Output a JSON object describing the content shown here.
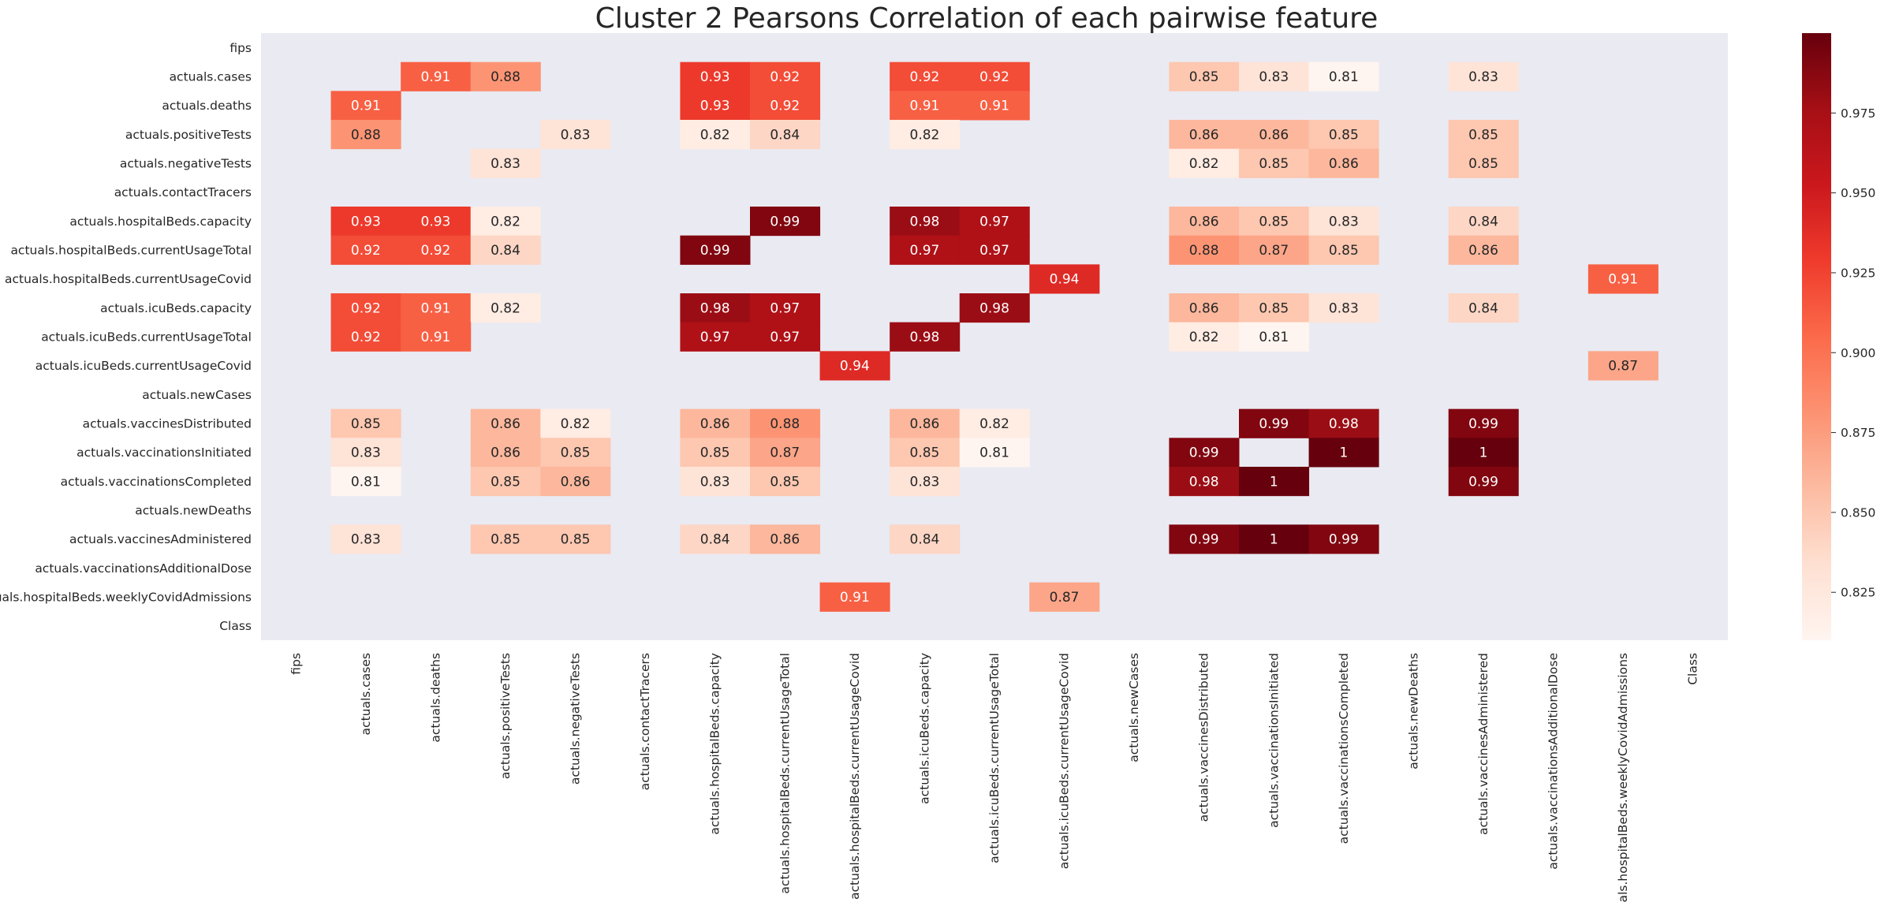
{
  "chart_data": {
    "type": "heatmap",
    "title": "Cluster 2 Pearsons Correlation of each pairwise feature",
    "xlabel": "",
    "ylabel": "",
    "features": [
      "fips",
      "actuals.cases",
      "actuals.deaths",
      "actuals.positiveTests",
      "actuals.negativeTests",
      "actuals.contactTracers",
      "actuals.hospitalBeds.capacity",
      "actuals.hospitalBeds.currentUsageTotal",
      "actuals.hospitalBeds.currentUsageCovid",
      "actuals.icuBeds.capacity",
      "actuals.icuBeds.currentUsageTotal",
      "actuals.icuBeds.currentUsageCovid",
      "actuals.newCases",
      "actuals.vaccinesDistributed",
      "actuals.vaccinationsInitiated",
      "actuals.vaccinationsCompleted",
      "actuals.newDeaths",
      "actuals.vaccinesAdministered",
      "actuals.vaccinationsAdditionalDose",
      "actuals.hospitalBeds.weeklyCovidAdmissions",
      "Class"
    ],
    "cells": [
      {
        "row": 1,
        "col": 2,
        "label": "0.91",
        "value": 0.91
      },
      {
        "row": 1,
        "col": 3,
        "label": "0.88",
        "value": 0.88
      },
      {
        "row": 1,
        "col": 6,
        "label": "0.93",
        "value": 0.93
      },
      {
        "row": 1,
        "col": 7,
        "label": "0.92",
        "value": 0.92
      },
      {
        "row": 1,
        "col": 9,
        "label": "0.92",
        "value": 0.92
      },
      {
        "row": 1,
        "col": 10,
        "label": "0.92",
        "value": 0.92
      },
      {
        "row": 1,
        "col": 13,
        "label": "0.85",
        "value": 0.85
      },
      {
        "row": 1,
        "col": 14,
        "label": "0.83",
        "value": 0.83
      },
      {
        "row": 1,
        "col": 15,
        "label": "0.81",
        "value": 0.81
      },
      {
        "row": 1,
        "col": 17,
        "label": "0.83",
        "value": 0.83
      },
      {
        "row": 2,
        "col": 1,
        "label": "0.91",
        "value": 0.91
      },
      {
        "row": 2,
        "col": 6,
        "label": "0.93",
        "value": 0.93
      },
      {
        "row": 2,
        "col": 7,
        "label": "0.92",
        "value": 0.92
      },
      {
        "row": 2,
        "col": 9,
        "label": "0.91",
        "value": 0.91
      },
      {
        "row": 2,
        "col": 10,
        "label": "0.91",
        "value": 0.91
      },
      {
        "row": 3,
        "col": 1,
        "label": "0.88",
        "value": 0.88
      },
      {
        "row": 3,
        "col": 4,
        "label": "0.83",
        "value": 0.83
      },
      {
        "row": 3,
        "col": 6,
        "label": "0.82",
        "value": 0.82
      },
      {
        "row": 3,
        "col": 7,
        "label": "0.84",
        "value": 0.84
      },
      {
        "row": 3,
        "col": 9,
        "label": "0.82",
        "value": 0.82
      },
      {
        "row": 3,
        "col": 13,
        "label": "0.86",
        "value": 0.86
      },
      {
        "row": 3,
        "col": 14,
        "label": "0.86",
        "value": 0.86
      },
      {
        "row": 3,
        "col": 15,
        "label": "0.85",
        "value": 0.85
      },
      {
        "row": 3,
        "col": 17,
        "label": "0.85",
        "value": 0.85
      },
      {
        "row": 4,
        "col": 3,
        "label": "0.83",
        "value": 0.83
      },
      {
        "row": 4,
        "col": 13,
        "label": "0.82",
        "value": 0.82
      },
      {
        "row": 4,
        "col": 14,
        "label": "0.85",
        "value": 0.85
      },
      {
        "row": 4,
        "col": 15,
        "label": "0.86",
        "value": 0.86
      },
      {
        "row": 4,
        "col": 17,
        "label": "0.85",
        "value": 0.85
      },
      {
        "row": 6,
        "col": 1,
        "label": "0.93",
        "value": 0.93
      },
      {
        "row": 6,
        "col": 2,
        "label": "0.93",
        "value": 0.93
      },
      {
        "row": 6,
        "col": 3,
        "label": "0.82",
        "value": 0.82
      },
      {
        "row": 6,
        "col": 7,
        "label": "0.99",
        "value": 0.99
      },
      {
        "row": 6,
        "col": 9,
        "label": "0.98",
        "value": 0.98
      },
      {
        "row": 6,
        "col": 10,
        "label": "0.97",
        "value": 0.97
      },
      {
        "row": 6,
        "col": 13,
        "label": "0.86",
        "value": 0.86
      },
      {
        "row": 6,
        "col": 14,
        "label": "0.85",
        "value": 0.85
      },
      {
        "row": 6,
        "col": 15,
        "label": "0.83",
        "value": 0.83
      },
      {
        "row": 6,
        "col": 17,
        "label": "0.84",
        "value": 0.84
      },
      {
        "row": 7,
        "col": 1,
        "label": "0.92",
        "value": 0.92
      },
      {
        "row": 7,
        "col": 2,
        "label": "0.92",
        "value": 0.92
      },
      {
        "row": 7,
        "col": 3,
        "label": "0.84",
        "value": 0.84
      },
      {
        "row": 7,
        "col": 6,
        "label": "0.99",
        "value": 0.99
      },
      {
        "row": 7,
        "col": 9,
        "label": "0.97",
        "value": 0.97
      },
      {
        "row": 7,
        "col": 10,
        "label": "0.97",
        "value": 0.97
      },
      {
        "row": 7,
        "col": 13,
        "label": "0.88",
        "value": 0.88
      },
      {
        "row": 7,
        "col": 14,
        "label": "0.87",
        "value": 0.87
      },
      {
        "row": 7,
        "col": 15,
        "label": "0.85",
        "value": 0.85
      },
      {
        "row": 7,
        "col": 17,
        "label": "0.86",
        "value": 0.86
      },
      {
        "row": 8,
        "col": 11,
        "label": "0.94",
        "value": 0.94
      },
      {
        "row": 8,
        "col": 19,
        "label": "0.91",
        "value": 0.91
      },
      {
        "row": 9,
        "col": 1,
        "label": "0.92",
        "value": 0.92
      },
      {
        "row": 9,
        "col": 2,
        "label": "0.91",
        "value": 0.91
      },
      {
        "row": 9,
        "col": 3,
        "label": "0.82",
        "value": 0.82
      },
      {
        "row": 9,
        "col": 6,
        "label": "0.98",
        "value": 0.98
      },
      {
        "row": 9,
        "col": 7,
        "label": "0.97",
        "value": 0.97
      },
      {
        "row": 9,
        "col": 10,
        "label": "0.98",
        "value": 0.98
      },
      {
        "row": 9,
        "col": 13,
        "label": "0.86",
        "value": 0.86
      },
      {
        "row": 9,
        "col": 14,
        "label": "0.85",
        "value": 0.85
      },
      {
        "row": 9,
        "col": 15,
        "label": "0.83",
        "value": 0.83
      },
      {
        "row": 9,
        "col": 17,
        "label": "0.84",
        "value": 0.84
      },
      {
        "row": 10,
        "col": 1,
        "label": "0.92",
        "value": 0.92
      },
      {
        "row": 10,
        "col": 2,
        "label": "0.91",
        "value": 0.91
      },
      {
        "row": 10,
        "col": 6,
        "label": "0.97",
        "value": 0.97
      },
      {
        "row": 10,
        "col": 7,
        "label": "0.97",
        "value": 0.97
      },
      {
        "row": 10,
        "col": 9,
        "label": "0.98",
        "value": 0.98
      },
      {
        "row": 10,
        "col": 13,
        "label": "0.82",
        "value": 0.82
      },
      {
        "row": 10,
        "col": 14,
        "label": "0.81",
        "value": 0.81
      },
      {
        "row": 11,
        "col": 8,
        "label": "0.94",
        "value": 0.94
      },
      {
        "row": 11,
        "col": 19,
        "label": "0.87",
        "value": 0.87
      },
      {
        "row": 13,
        "col": 1,
        "label": "0.85",
        "value": 0.85
      },
      {
        "row": 13,
        "col": 3,
        "label": "0.86",
        "value": 0.86
      },
      {
        "row": 13,
        "col": 4,
        "label": "0.82",
        "value": 0.82
      },
      {
        "row": 13,
        "col": 6,
        "label": "0.86",
        "value": 0.86
      },
      {
        "row": 13,
        "col": 7,
        "label": "0.88",
        "value": 0.88
      },
      {
        "row": 13,
        "col": 9,
        "label": "0.86",
        "value": 0.86
      },
      {
        "row": 13,
        "col": 10,
        "label": "0.82",
        "value": 0.82
      },
      {
        "row": 13,
        "col": 14,
        "label": "0.99",
        "value": 0.99
      },
      {
        "row": 13,
        "col": 15,
        "label": "0.98",
        "value": 0.98
      },
      {
        "row": 13,
        "col": 17,
        "label": "0.99",
        "value": 0.99
      },
      {
        "row": 14,
        "col": 1,
        "label": "0.83",
        "value": 0.83
      },
      {
        "row": 14,
        "col": 3,
        "label": "0.86",
        "value": 0.86
      },
      {
        "row": 14,
        "col": 4,
        "label": "0.85",
        "value": 0.85
      },
      {
        "row": 14,
        "col": 6,
        "label": "0.85",
        "value": 0.85
      },
      {
        "row": 14,
        "col": 7,
        "label": "0.87",
        "value": 0.87
      },
      {
        "row": 14,
        "col": 9,
        "label": "0.85",
        "value": 0.85
      },
      {
        "row": 14,
        "col": 10,
        "label": "0.81",
        "value": 0.81
      },
      {
        "row": 14,
        "col": 13,
        "label": "0.99",
        "value": 0.99
      },
      {
        "row": 14,
        "col": 15,
        "label": "1",
        "value": 1.0
      },
      {
        "row": 14,
        "col": 17,
        "label": "1",
        "value": 1.0
      },
      {
        "row": 15,
        "col": 1,
        "label": "0.81",
        "value": 0.81
      },
      {
        "row": 15,
        "col": 3,
        "label": "0.85",
        "value": 0.85
      },
      {
        "row": 15,
        "col": 4,
        "label": "0.86",
        "value": 0.86
      },
      {
        "row": 15,
        "col": 6,
        "label": "0.83",
        "value": 0.83
      },
      {
        "row": 15,
        "col": 7,
        "label": "0.85",
        "value": 0.85
      },
      {
        "row": 15,
        "col": 9,
        "label": "0.83",
        "value": 0.83
      },
      {
        "row": 15,
        "col": 13,
        "label": "0.98",
        "value": 0.98
      },
      {
        "row": 15,
        "col": 14,
        "label": "1",
        "value": 1.0
      },
      {
        "row": 15,
        "col": 17,
        "label": "0.99",
        "value": 0.99
      },
      {
        "row": 17,
        "col": 1,
        "label": "0.83",
        "value": 0.83
      },
      {
        "row": 17,
        "col": 3,
        "label": "0.85",
        "value": 0.85
      },
      {
        "row": 17,
        "col": 4,
        "label": "0.85",
        "value": 0.85
      },
      {
        "row": 17,
        "col": 6,
        "label": "0.84",
        "value": 0.84
      },
      {
        "row": 17,
        "col": 7,
        "label": "0.86",
        "value": 0.86
      },
      {
        "row": 17,
        "col": 9,
        "label": "0.84",
        "value": 0.84
      },
      {
        "row": 17,
        "col": 13,
        "label": "0.99",
        "value": 0.99
      },
      {
        "row": 17,
        "col": 14,
        "label": "1",
        "value": 1.0
      },
      {
        "row": 17,
        "col": 15,
        "label": "0.99",
        "value": 0.99
      },
      {
        "row": 19,
        "col": 8,
        "label": "0.91",
        "value": 0.91
      },
      {
        "row": 19,
        "col": 11,
        "label": "0.87",
        "value": 0.87
      }
    ],
    "colorbar": {
      "colormap": "Reds",
      "range": [
        0.81,
        1.0
      ],
      "ticks": [
        0.825,
        0.85,
        0.875,
        0.9,
        0.925,
        0.95,
        0.975
      ],
      "tick_labels": [
        "0.825",
        "0.850",
        "0.875",
        "0.900",
        "0.925",
        "0.950",
        "0.975"
      ]
    },
    "grid": false,
    "legend": "colorbar-right",
    "colors": {
      "plot_background": "#eaeaf2",
      "page_background": "#ffffff",
      "text": "#262626"
    }
  }
}
